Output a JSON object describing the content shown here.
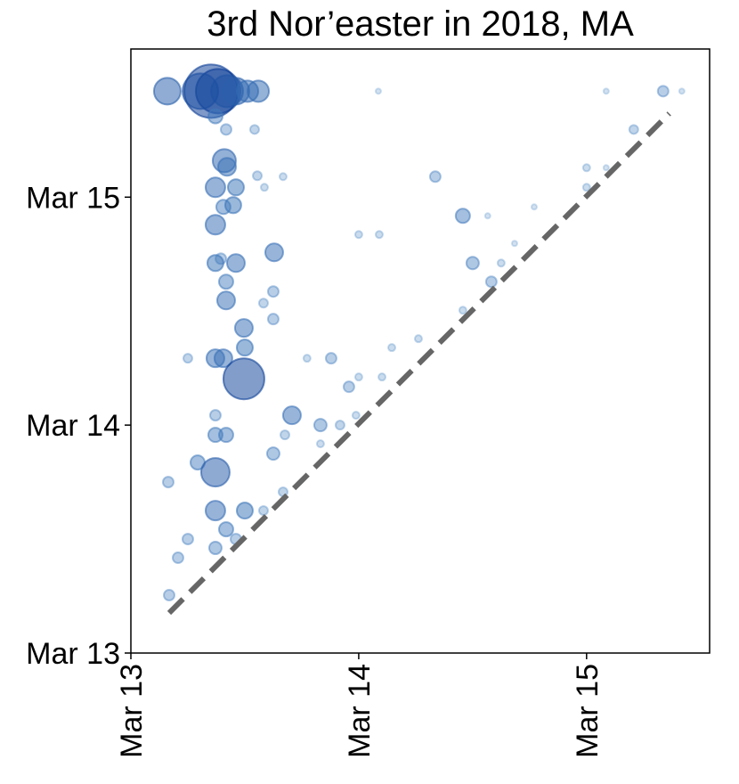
{
  "chart_data": {
    "type": "scatter",
    "title": "3rd Nor’easter in 2018, MA",
    "x": [
      0.16,
      0.352,
      0.383,
      0.422,
      0.461,
      0.512,
      0.559,
      0.305,
      1.086,
      2.086,
      2.336,
      2.418,
      0.371,
      0.418,
      0.543,
      0.41,
      0.422,
      0.371,
      0.461,
      0.449,
      0.406,
      0.371,
      0.395,
      0.371,
      0.461,
      0.629,
      0.418,
      0.418,
      0.625,
      0.582,
      0.496,
      0.5,
      0.406,
      0.371,
      0.496,
      0.25,
      0.625,
      1.336,
      1.457,
      1.5,
      1.582,
      1.457,
      0.879,
      0.957,
      1.0,
      1.102,
      1.0,
      1.09,
      0.555,
      0.668,
      0.586,
      1.566,
      1.77,
      2.0,
      2.086,
      2.207,
      1.684,
      1.625,
      2.0,
      0.707,
      0.371,
      0.371,
      0.418,
      0.293,
      0.371,
      0.625,
      0.676,
      0.832,
      0.918,
      0.988,
      0.832,
      0.164,
      0.5,
      0.371,
      0.418,
      0.371,
      0.461,
      0.25,
      0.207,
      0.168,
      0.582,
      0.668,
      1.145,
      1.262,
      0.773
    ],
    "y": [
      2.465,
      2.465,
      2.465,
      2.465,
      2.465,
      2.465,
      2.465,
      2.465,
      2.465,
      2.465,
      2.465,
      2.465,
      2.355,
      2.297,
      2.297,
      2.16,
      2.133,
      2.043,
      2.043,
      1.965,
      1.957,
      1.879,
      1.73,
      1.711,
      1.711,
      1.758,
      1.629,
      1.547,
      1.586,
      1.535,
      1.426,
      1.34,
      1.293,
      1.293,
      1.203,
      1.293,
      1.465,
      2.09,
      1.918,
      1.711,
      1.629,
      1.504,
      1.293,
      1.168,
      1.211,
      1.211,
      1.836,
      1.836,
      2.094,
      2.09,
      2.043,
      1.918,
      1.957,
      2.043,
      2.129,
      2.297,
      1.797,
      1.711,
      2.129,
      1.043,
      1.043,
      0.957,
      0.957,
      0.836,
      0.793,
      0.875,
      0.957,
      1.0,
      1.0,
      1.043,
      0.918,
      0.75,
      0.625,
      0.625,
      0.543,
      0.461,
      0.5,
      0.5,
      0.418,
      0.254,
      0.625,
      0.707,
      1.34,
      1.379,
      1.293
    ],
    "sizes": [
      15,
      30,
      25,
      18,
      15,
      12,
      12,
      20,
      3,
      3,
      6,
      3,
      8,
      6,
      5,
      13,
      10,
      11,
      9,
      9,
      8,
      11,
      6,
      9,
      10,
      10,
      8,
      10,
      6,
      5,
      10,
      9,
      10,
      10,
      23,
      5,
      6,
      6,
      8,
      7,
      6,
      4,
      6,
      6,
      4,
      4,
      4,
      4,
      5,
      4,
      4,
      3,
      3,
      4,
      3,
      5,
      3,
      4,
      4,
      10,
      6,
      8,
      8,
      8,
      16,
      7,
      5,
      7,
      5,
      4,
      4,
      6,
      9,
      11,
      8,
      7,
      6,
      6,
      6,
      6,
      5,
      5,
      4,
      4,
      4
    ],
    "color": "#2171b5",
    "reference_line": {
      "x": [
        0.168,
        2.363
      ],
      "y": [
        0.176,
        2.367
      ],
      "color": "#666666"
    },
    "xlim": [
      0,
      2.54
    ],
    "ylim": [
      0,
      2.65
    ],
    "xticks": [
      {
        "value": 0,
        "label": "Mar 13"
      },
      {
        "value": 1,
        "label": "Mar 14"
      },
      {
        "value": 2,
        "label": "Mar 15"
      }
    ],
    "yticks": [
      {
        "value": 0,
        "label": "Mar 13"
      },
      {
        "value": 1,
        "label": "Mar 14"
      },
      {
        "value": 2,
        "label": "Mar 15"
      }
    ],
    "grid": false
  }
}
